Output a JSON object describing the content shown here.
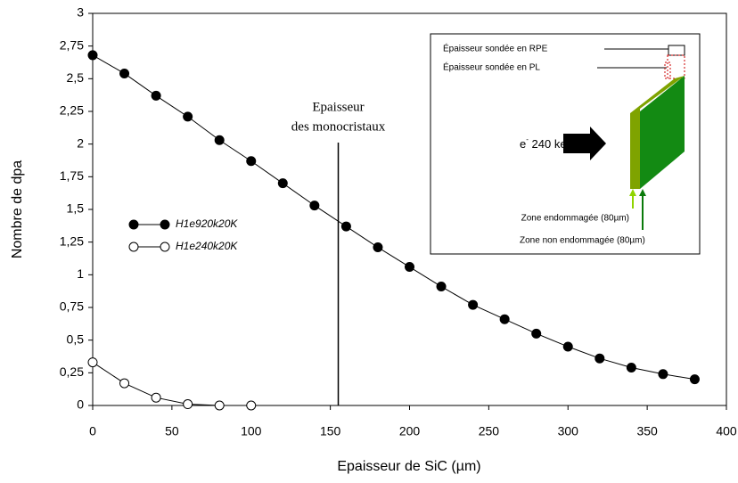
{
  "chart_data": {
    "type": "line",
    "xlabel": "Epaisseur de SiC (µm)",
    "ylabel": "Nombre de dpa",
    "xlim": [
      0,
      400
    ],
    "ylim": [
      0,
      3
    ],
    "xticks": [
      0,
      50,
      100,
      150,
      200,
      250,
      300,
      350,
      400
    ],
    "yticks": [
      0,
      {
        "value": 0.25,
        "label": "0,25"
      },
      {
        "value": 0.5,
        "label": "0,5"
      },
      {
        "value": 0.75,
        "label": "0,75"
      },
      1,
      {
        "value": 1.25,
        "label": "1,25"
      },
      {
        "value": 1.5,
        "label": "1,5"
      },
      {
        "value": 1.75,
        "label": "1,75"
      },
      2,
      {
        "value": 2.25,
        "label": "2,25"
      },
      {
        "value": 2.5,
        "label": "2,5"
      },
      {
        "value": 2.75,
        "label": "2,75"
      },
      3
    ],
    "series": [
      {
        "name": "H1e920k20K",
        "color": "#000000",
        "marker_fill": "#000000",
        "x": [
          0,
          20,
          40,
          60,
          80,
          100,
          120,
          140,
          160,
          180,
          200,
          220,
          240,
          260,
          280,
          300,
          320,
          340,
          360,
          380
        ],
        "values": [
          2.68,
          2.54,
          2.37,
          2.21,
          2.03,
          1.87,
          1.7,
          1.53,
          1.37,
          1.21,
          1.06,
          0.91,
          0.77,
          0.66,
          0.55,
          0.45,
          0.36,
          0.29,
          0.24,
          0.2
        ]
      },
      {
        "name": "H1e240k20K",
        "color": "#000000",
        "marker_fill": "#ffffff",
        "x": [
          0,
          20,
          40,
          60,
          80,
          100
        ],
        "values": [
          0.33,
          0.17,
          0.06,
          0.01,
          0.0,
          0.0
        ]
      }
    ],
    "annotation": {
      "x": 155,
      "lines": [
        "Epaisseur",
        "des monocristaux"
      ]
    },
    "inset": {
      "rpe": "Épaisseur sondée en RPE",
      "pl": "Épaisseur sondée en PL",
      "beam": {
        "particle": "e",
        "charge": "-",
        "energy": " 240 keV"
      },
      "damaged": "Zone endommagée (80µm)",
      "undamaged": "Zone non endommagée (80µm)"
    }
  }
}
